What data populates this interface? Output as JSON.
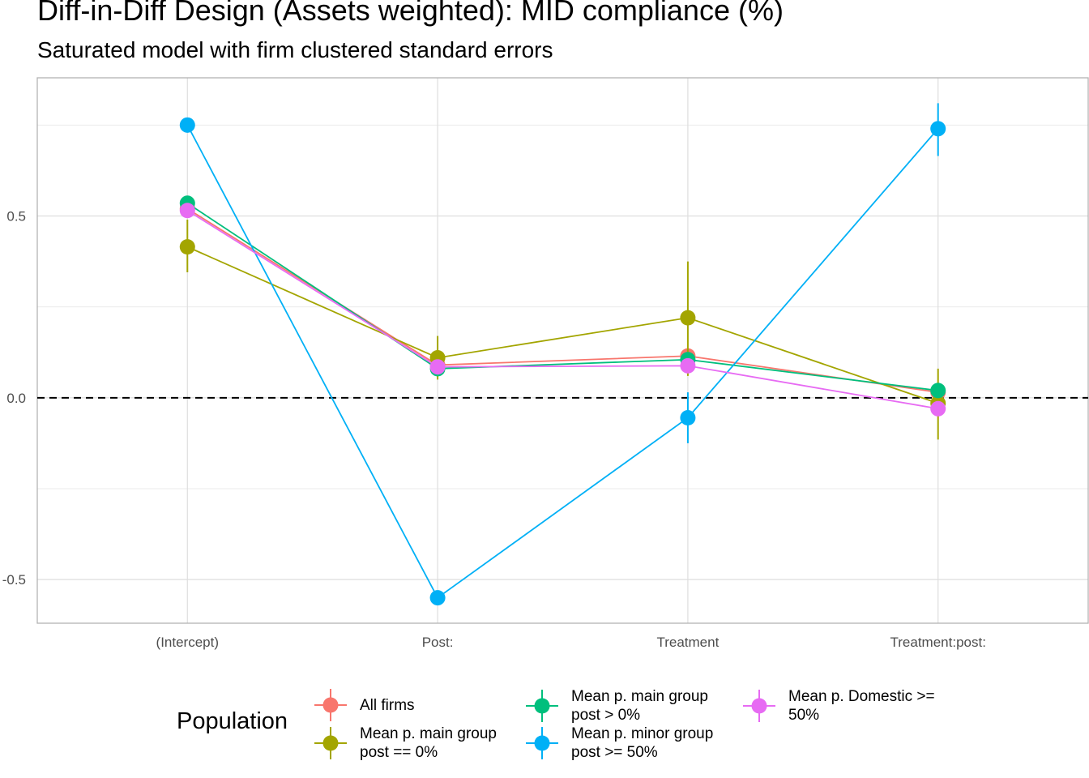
{
  "chart_data": {
    "type": "line",
    "title": "Diff-in-Diff Design (Assets weighted): MID compliance (%)",
    "subtitle": "Saturated model with firm clustered standard errors",
    "xlabel": "",
    "ylabel": "",
    "categories": [
      "(Intercept)",
      "Post:",
      "Treatment",
      "Treatment:post:"
    ],
    "y_ticks": [
      -0.5,
      0.0,
      0.5
    ],
    "y_tick_labels": [
      "-0.5",
      "0.0",
      "0.5"
    ],
    "ylim": [
      -0.62,
      0.88
    ],
    "reference_line": 0,
    "grid": true,
    "legend_title": "Population",
    "legend_position": "bottom",
    "series": [
      {
        "name": "All firms",
        "color": "#F8766D",
        "values": [
          0.52,
          0.09,
          0.115,
          0.015
        ],
        "lower": [
          0.51,
          0.08,
          0.105,
          0.005
        ],
        "upper": [
          0.53,
          0.1,
          0.125,
          0.025
        ]
      },
      {
        "name": "Mean p. main group\npost == 0%",
        "color": "#A3A500",
        "values": [
          0.415,
          0.11,
          0.22,
          -0.015
        ],
        "lower": [
          0.345,
          0.05,
          0.06,
          -0.115
        ],
        "upper": [
          0.49,
          0.17,
          0.375,
          0.08
        ]
      },
      {
        "name": "Mean p. main group\npost > 0%",
        "color": "#00BF7D",
        "values": [
          0.535,
          0.08,
          0.105,
          0.02
        ],
        "lower": [
          0.525,
          0.07,
          0.095,
          0.01
        ],
        "upper": [
          0.545,
          0.09,
          0.115,
          0.03
        ]
      },
      {
        "name": "Mean p. minor group\npost >= 50%",
        "color": "#00B0F6",
        "values": [
          0.75,
          -0.55,
          -0.055,
          0.74
        ],
        "lower": [
          0.74,
          -0.56,
          -0.125,
          0.665
        ],
        "upper": [
          0.76,
          -0.54,
          0.015,
          0.81
        ]
      },
      {
        "name": "Mean p. Domestic >=\n50%",
        "color": "#E76BF3",
        "values": [
          0.515,
          0.085,
          0.088,
          -0.03
        ],
        "lower": [
          0.505,
          0.075,
          0.078,
          -0.04
        ],
        "upper": [
          0.525,
          0.095,
          0.098,
          -0.02
        ]
      }
    ]
  }
}
